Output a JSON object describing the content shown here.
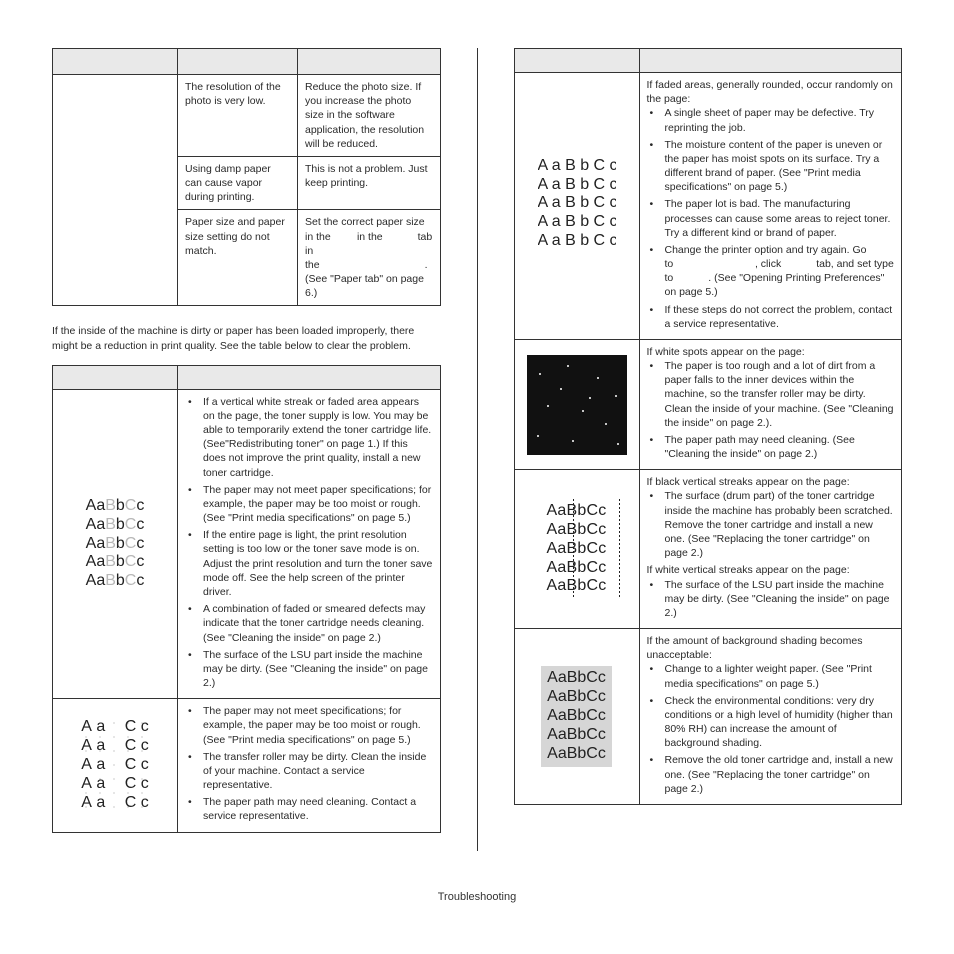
{
  "top_table": {
    "rows": [
      {
        "cause": "The resolution of the photo is very low.",
        "solution": "Reduce the photo size. If you increase the photo size in the software application, the resolution will be reduced."
      },
      {
        "cause": "Using damp paper can cause vapor during printing.",
        "solution": "This is not a problem. Just keep printing."
      },
      {
        "cause": "Paper size and paper size setting do not match.",
        "solution": "Set the correct paper size in the         in the            tab in the                                    . (See \"Paper tab\" on page 6.)"
      }
    ]
  },
  "intro": "If the inside of the machine is dirty or paper has been loaded improperly, there might be a reduction in print quality. See the table below to clear the problem.",
  "left_rows": [
    {
      "sample": "faded",
      "bullets": [
        "If a vertical white streak or faded area appears on the page, the toner supply is low. You may be able to temporarily extend the toner cartridge life. (See\"Redistributing toner\" on page 1.) If this does not improve the print quality, install a new toner cartridge.",
        "The paper may not meet paper specifications; for example, the paper may be too moist or rough. (See \"Print media specifications\" on page 5.)",
        "If the entire page is light, the print resolution setting is too low or the toner save mode is on. Adjust the print resolution and turn the toner save mode off. See the help screen of the printer driver.",
        "A combination of faded or smeared defects may indicate that the toner cartridge needs cleaning. (See \"Cleaning the inside\" on page 2.)",
        "The surface of the LSU part inside the machine may be dirty. (See \"Cleaning the inside\" on page 2.)"
      ]
    },
    {
      "sample": "dropout",
      "bullets": [
        "The paper may not meet specifications; for example, the paper may be too moist or rough. (See \"Print media specifications\" on page 5.)",
        "The transfer roller may be dirty. Clean the inside of your machine. Contact a service representative.",
        "The paper path may need cleaning. Contact a service representative."
      ]
    }
  ],
  "right_rows": [
    {
      "sample": "cutoff",
      "intro": "If faded areas, generally rounded, occur randomly on the page:",
      "bullets": [
        "A single sheet of paper may be defective. Try reprinting the job.",
        "The moisture content of the paper is uneven or the paper has moist spots on its surface. Try a different brand of paper. (See \"Print media specifications\" on page 5.)",
        "The paper lot is bad. The manufacturing processes can cause some areas to reject toner. Try a different kind or brand of paper.",
        "Change the printer option and try again. Go to                            , click            tab, and set type to            . (See \"Opening Printing Preferences\" on page 5.)",
        "If these steps do not correct the problem, contact a service representative."
      ]
    },
    {
      "sample": "whitespots",
      "intro": "If white spots appear on the page:",
      "bullets": [
        "The paper is too rough and a lot of dirt from a paper falls to the inner devices within the machine, so the transfer roller may be dirty. Clean the inside of your machine. (See \"Cleaning the inside\" on page 2.).",
        "The paper path may need cleaning. (See \"Cleaning the inside\" on page 2.)"
      ]
    },
    {
      "sample": "vline",
      "intro": "If black vertical streaks appear on the page:",
      "bullets": [
        "The surface (drum part) of the toner cartridge inside the machine has probably been scratched. Remove the toner cartridge and install a new one. (See \"Replacing the toner cartridge\" on page 2.)"
      ],
      "intro2": "If white vertical streaks appear on the page:",
      "bullets2": [
        "The surface of the LSU part inside the machine may be dirty. (See \"Cleaning the inside\" on page 2.)"
      ]
    },
    {
      "sample": "bgshade",
      "intro": "If the amount of background shading becomes unacceptable:",
      "bullets": [
        "Change to a lighter weight paper. (See \"Print media specifications\" on page 5.)",
        "Check the environmental conditions: very dry conditions or a high level of humidity (higher than 80% RH) can increase the amount of background shading.",
        "Remove the old toner cartridge and, install a new one. (See \"Replacing the toner cartridge\" on page 2.)"
      ]
    }
  ],
  "footer": "Troubleshooting"
}
